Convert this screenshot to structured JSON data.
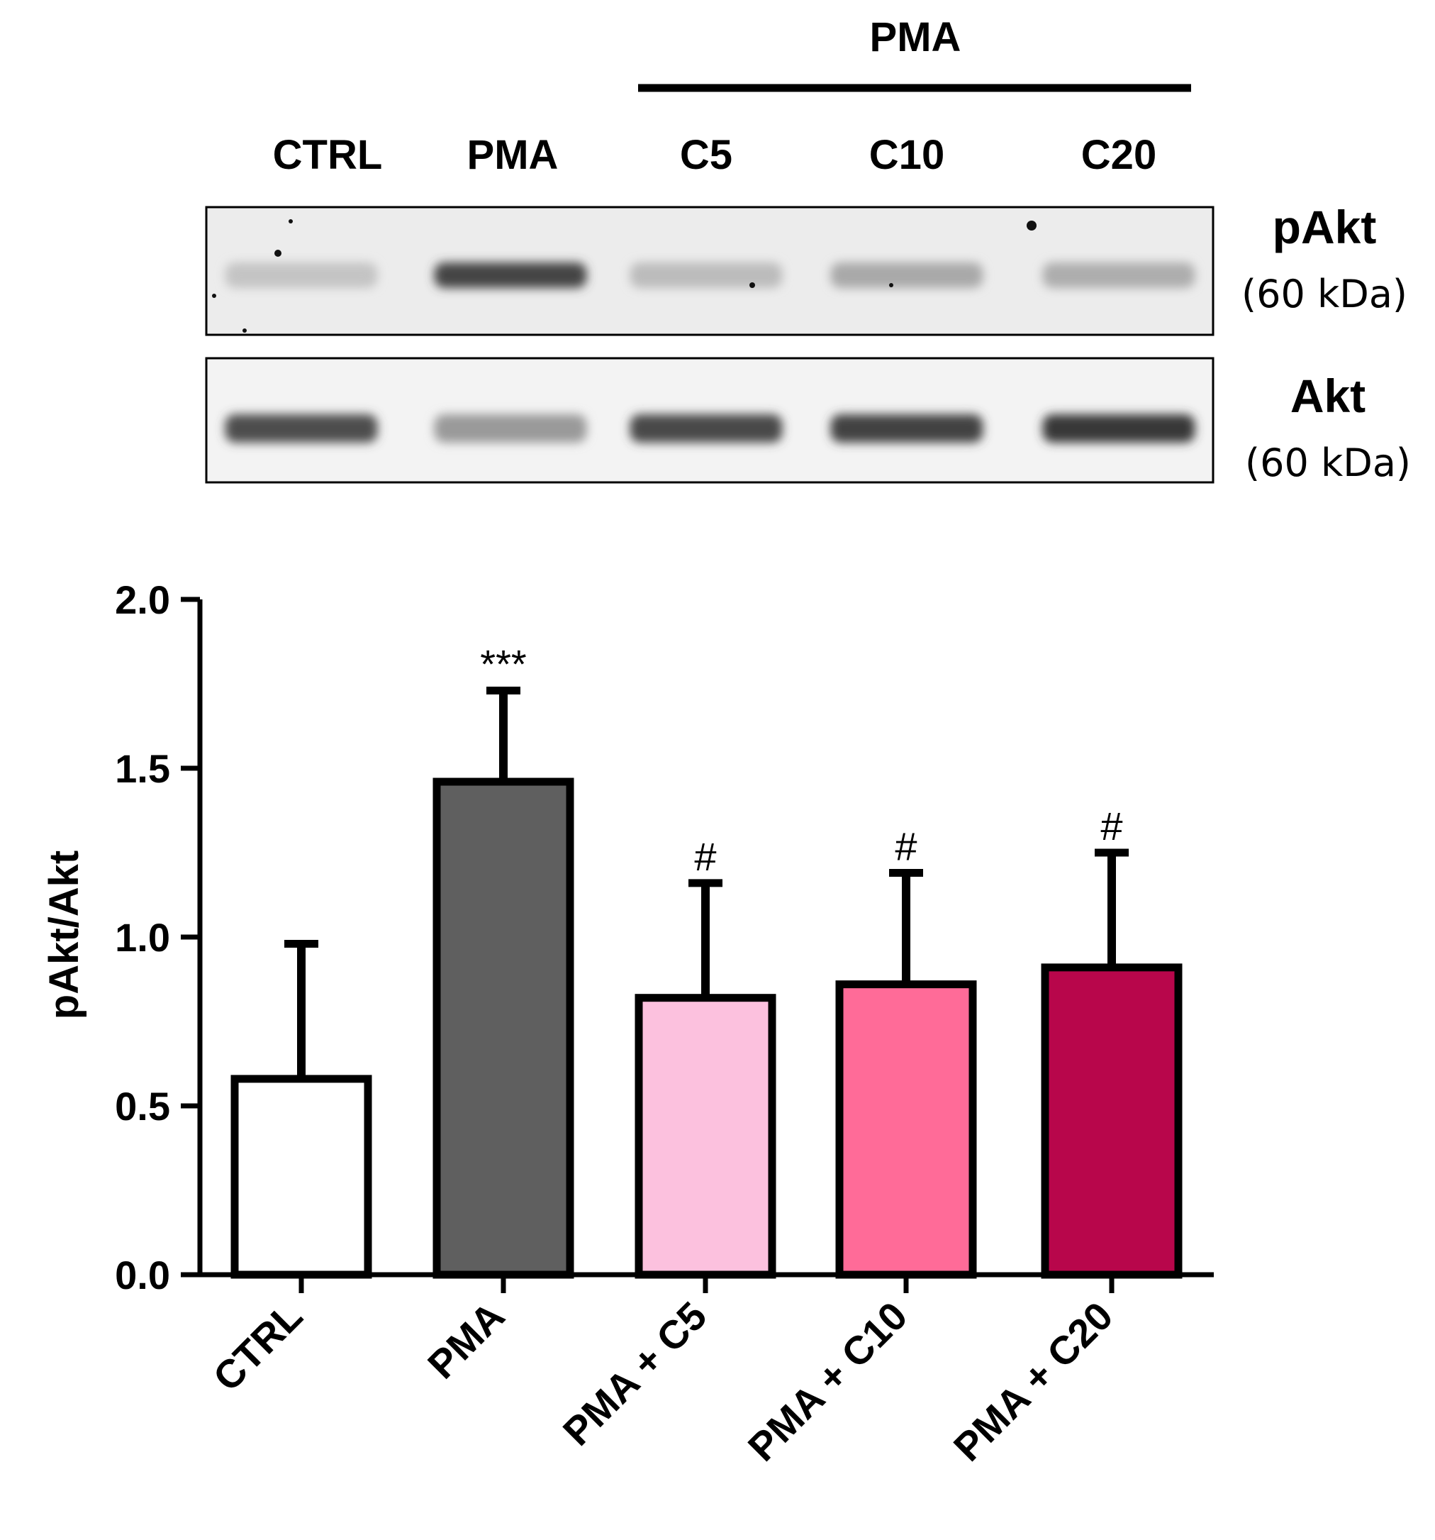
{
  "blot": {
    "group_label": "PMA",
    "lanes": [
      "CTRL",
      "PMA",
      "C5",
      "C10",
      "C20"
    ],
    "bands": [
      {
        "name": "pAkt",
        "size": "(60 kDa)",
        "intensity": [
          0.18,
          0.85,
          0.22,
          0.32,
          0.3
        ]
      },
      {
        "name": "Akt",
        "size": "(60 kDa)",
        "intensity": [
          0.8,
          0.4,
          0.82,
          0.86,
          0.92
        ]
      }
    ]
  },
  "chart_data": {
    "type": "bar",
    "categories": [
      "CTRL",
      "PMA",
      "PMA + C5",
      "PMA + C10",
      "PMA + C20"
    ],
    "values": [
      0.58,
      1.46,
      0.82,
      0.86,
      0.91
    ],
    "errors": [
      0.4,
      0.27,
      0.34,
      0.33,
      0.34
    ],
    "significance": [
      "",
      "***",
      "#",
      "#",
      "#"
    ],
    "colors": [
      "#ffffff",
      "#5f5f5f",
      "#fcc1de",
      "#ff6b98",
      "#b8064b"
    ],
    "ylabel": "pAkt/Akt",
    "ylim": [
      0,
      2.0
    ],
    "yticks": [
      "0.0",
      "0.5",
      "1.0",
      "1.5",
      "2.0"
    ],
    "grid": false
  }
}
